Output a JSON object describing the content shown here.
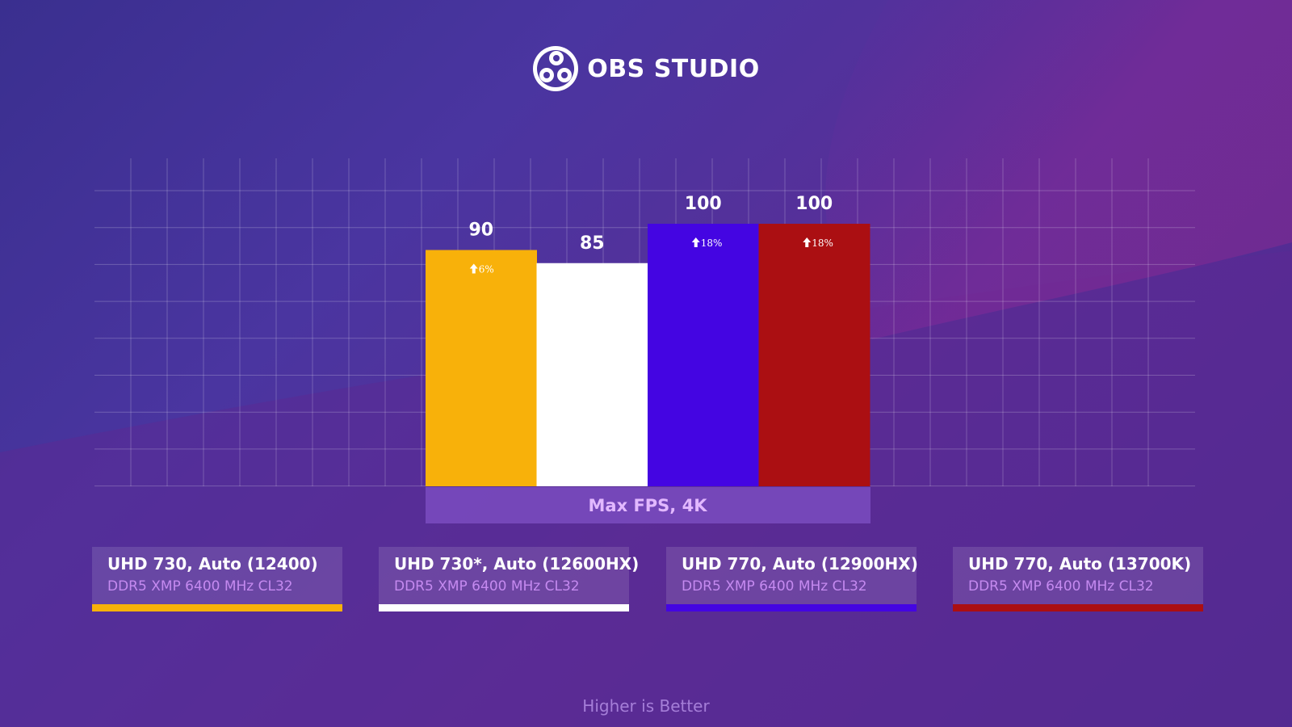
{
  "header": {
    "logo_text": "OBS STUDIO"
  },
  "chart_data": {
    "type": "bar",
    "title": "",
    "xlabel": "Max FPS, 4K",
    "ylabel": "",
    "ylim": [
      0,
      120
    ],
    "grid": true,
    "legend_position": "bottom",
    "categories": [
      "UHD 730, Auto (12400)",
      "UHD 730*, Auto (12600HX)",
      "UHD 770, Auto (12900HX)",
      "UHD 770, Auto (13700K)"
    ],
    "values": [
      90,
      85,
      100,
      100
    ],
    "value_labels": [
      "90",
      "85",
      "100",
      "100"
    ],
    "uplift_labels": [
      "6%",
      "",
      "18%",
      "18%"
    ],
    "colors": [
      "#f8b10a",
      "#ffffff",
      "#4405e2",
      "#ab0f12"
    ]
  },
  "legend": {
    "items": [
      {
        "name": "UHD 730, Auto (12400)",
        "sub": "DDR5 XMP 6400 MHz CL32",
        "color": "#f8b10a"
      },
      {
        "name": "UHD 730*, Auto (12600HX)",
        "sub": "DDR5 XMP 6400 MHz CL32",
        "color": "#ffffff"
      },
      {
        "name": "UHD 770, Auto (12900HX)",
        "sub": "DDR5 XMP 6400 MHz CL32",
        "color": "#4405e2"
      },
      {
        "name": "UHD 770, Auto (13700K)",
        "sub": "DDR5 XMP 6400 MHz CL32",
        "color": "#ab0f12"
      }
    ]
  },
  "footer": {
    "note": "Higher is Better"
  }
}
